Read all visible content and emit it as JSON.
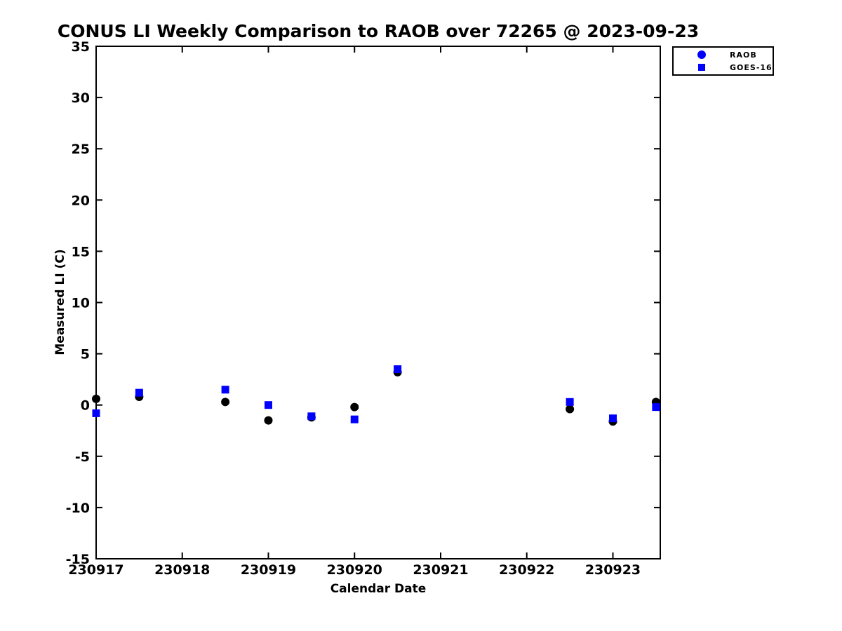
{
  "figure": {
    "title": "CONUS LI Weekly Comparison to RAOB over 72265 @ 2023-09-23"
  },
  "chart_data": {
    "type": "scatter",
    "title": "CONUS LI Weekly Comparison to RAOB over 72265 @ 2023-09-23",
    "xlabel": "Calendar Date",
    "ylabel": "Measured LI (C)",
    "xlim": [
      230917,
      230923.55
    ],
    "ylim": [
      -15,
      35
    ],
    "xticks": [
      230917,
      230918,
      230919,
      230920,
      230921,
      230922,
      230923
    ],
    "yticks": [
      35,
      30,
      25,
      20,
      15,
      10,
      5,
      0,
      -5,
      -10,
      -15
    ],
    "grid": false,
    "background_color": "#ffffff",
    "axis_color": "#000000",
    "legend": {
      "position": "top-right-outside",
      "entries": [
        {
          "label": "RAOB",
          "marker": "circle",
          "marker_color": "#0000ff"
        },
        {
          "label": "GOES-16",
          "marker": "square",
          "marker_color": "#0000ff"
        }
      ]
    },
    "series": [
      {
        "name": "RAOB",
        "marker": "circle",
        "color": "#000000",
        "points": [
          [
            230917.0,
            0.6
          ],
          [
            230917.5,
            0.8
          ],
          [
            230918.5,
            0.3
          ],
          [
            230919.0,
            -1.5
          ],
          [
            230919.5,
            -1.2
          ],
          [
            230920.0,
            -0.2
          ],
          [
            230920.5,
            3.2
          ],
          [
            230922.5,
            -0.4
          ],
          [
            230923.0,
            -1.6
          ],
          [
            230923.5,
            0.3
          ]
        ]
      },
      {
        "name": "GOES-16",
        "marker": "square",
        "color": "#0000ff",
        "points": [
          [
            230917.0,
            -0.8
          ],
          [
            230917.5,
            1.2
          ],
          [
            230918.5,
            1.5
          ],
          [
            230919.0,
            0.0
          ],
          [
            230919.5,
            -1.1
          ],
          [
            230920.0,
            -1.4
          ],
          [
            230920.5,
            3.5
          ],
          [
            230922.5,
            0.3
          ],
          [
            230923.0,
            -1.3
          ],
          [
            230923.5,
            -0.2
          ]
        ]
      }
    ]
  }
}
